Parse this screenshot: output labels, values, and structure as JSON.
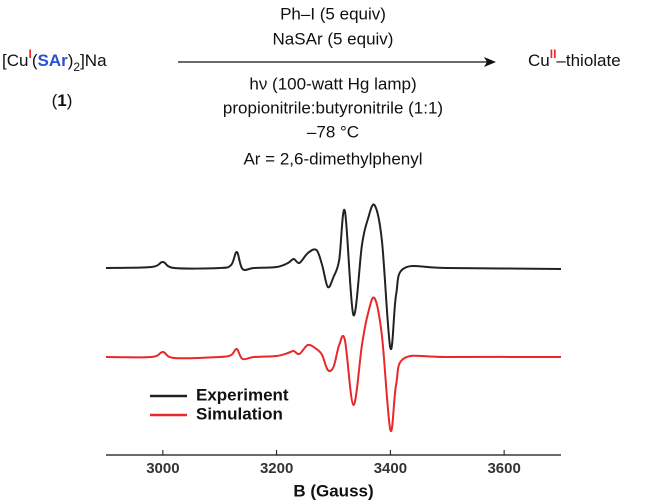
{
  "scheme": {
    "reactant": {
      "pre": "[Cu",
      "ox": "I",
      "open": "(",
      "ligand": "SAr",
      "close": ")",
      "sub": "2",
      "post": "]Na"
    },
    "compound": {
      "open": "(",
      "number": "1",
      "close": ")"
    },
    "above": [
      "Ph–I (5 equiv)",
      "NaSAr (5 equiv)"
    ],
    "below": [
      "hν (100-watt Hg lamp)",
      "propionitrile:butyronitrile (1:1)",
      "–78 °C",
      "Ar = 2,6-dimethylphenyl"
    ],
    "product": {
      "pre": "Cu",
      "ox": "II",
      "post": "–thiolate"
    }
  },
  "chart_data": {
    "type": "line",
    "xlabel": "B (Gauss)",
    "x": [
      2900,
      2980,
      3000,
      3020,
      3100,
      3120,
      3130,
      3140,
      3160,
      3200,
      3220,
      3230,
      3240,
      3255,
      3270,
      3280,
      3290,
      3300,
      3310,
      3320,
      3335,
      3350,
      3360,
      3372,
      3385,
      3400,
      3410,
      3425,
      3500,
      3700
    ],
    "series": [
      {
        "name": "Experiment",
        "color": "#222222",
        "values": [
          187,
          188,
          193,
          187,
          187,
          190,
          203,
          186,
          187,
          188,
          192,
          196,
          192,
          202,
          205,
          190,
          168,
          178,
          195,
          244,
          140,
          210,
          235,
          250,
          215,
          107,
          160,
          187,
          187,
          186
        ]
      },
      {
        "name": "Simulation",
        "color": "#e8282a",
        "values": [
          98,
          98,
          103,
          97,
          98,
          100,
          106,
          96,
          98,
          99,
          102,
          104,
          101,
          110,
          106,
          100,
          85,
          88,
          110,
          115,
          50,
          110,
          140,
          157,
          120,
          25,
          70,
          97,
          98,
          98
        ]
      }
    ],
    "xlim": [
      2900,
      3700
    ],
    "xticks": [
      3000,
      3200,
      3400,
      3600
    ],
    "ylim": [
      0,
      260
    ]
  }
}
